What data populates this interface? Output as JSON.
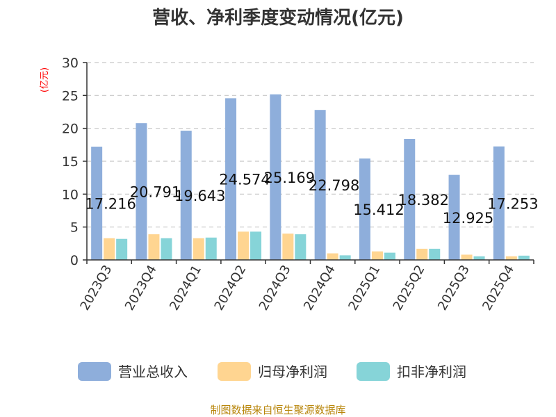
{
  "chart_data": {
    "type": "bar",
    "title": "营收、净利季度变动情况(亿元)",
    "ylabel": "(亿元)",
    "xlabel": "",
    "ylim": [
      0,
      30
    ],
    "yticks": [
      0,
      5,
      10,
      15,
      20,
      25,
      30
    ],
    "grid": true,
    "legend_position": "bottom",
    "categories": [
      "2023Q3",
      "2023Q4",
      "2024Q1",
      "2024Q2",
      "2024Q3",
      "2024Q4",
      "2025Q1",
      "2025Q2",
      "2025Q3",
      "2025Q4"
    ],
    "series": [
      {
        "name": "营业总收入",
        "color": "#8eaedb",
        "values": [
          17.216,
          20.791,
          19.643,
          24.574,
          25.169,
          22.798,
          15.412,
          18.382,
          12.925,
          17.253
        ],
        "labels": [
          "17.216",
          "20.791",
          "19.643",
          "24.574",
          "25.169",
          "22.798",
          "15.412",
          "18.382",
          "12.925",
          "17.253"
        ]
      },
      {
        "name": "归母净利润",
        "color": "#ffd591",
        "values": [
          3.3,
          3.9,
          3.3,
          4.3,
          4.0,
          1.0,
          1.3,
          1.7,
          0.8,
          0.55
        ]
      },
      {
        "name": "扣非净利润",
        "color": "#86d4d8",
        "values": [
          3.2,
          3.3,
          3.4,
          4.3,
          3.9,
          0.7,
          1.1,
          1.7,
          0.55,
          0.65
        ]
      }
    ]
  },
  "source": "制图数据来自恒生聚源数据库"
}
